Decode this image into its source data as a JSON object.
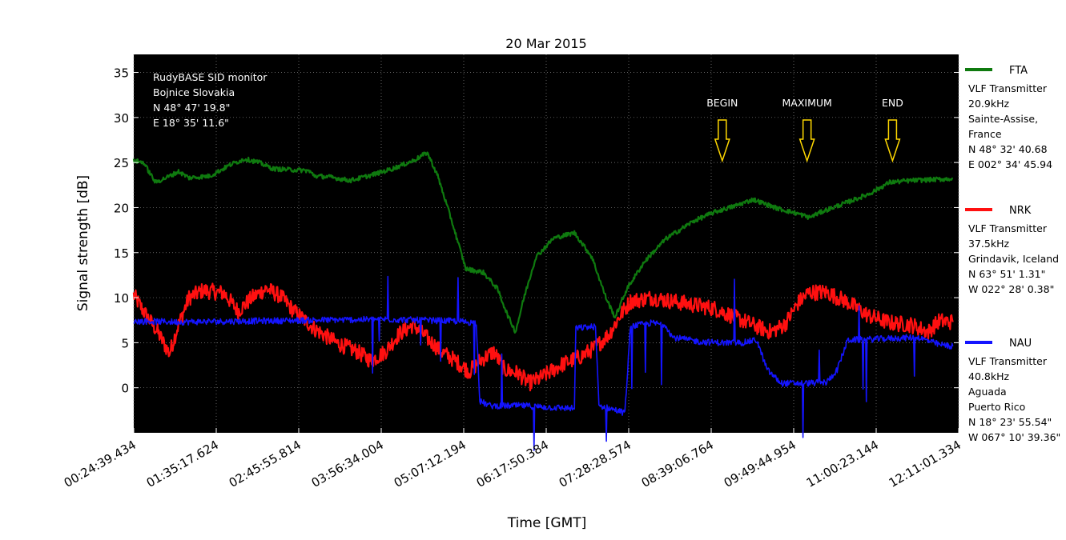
{
  "chart_data": {
    "type": "line",
    "title": "20 Mar 2015",
    "xlabel": "Time [GMT]",
    "ylabel": "Signal strength [dB]",
    "ylim": [
      -5,
      37
    ],
    "yticks": [
      0,
      5,
      10,
      15,
      20,
      25,
      30,
      35
    ],
    "x_tick_labels": [
      "00:24:39.434",
      "01:35:17.624",
      "02:45:55.814",
      "03:56:34.004",
      "05:07:12.194",
      "06:17:50.384",
      "07:28:28.574",
      "08:39:06.764",
      "09:49:44.954",
      "11:00:23.144",
      "12:11:01.334"
    ],
    "x_unit": "hours GMT (decimal)",
    "xlim": [
      0.411,
      12.184
    ],
    "grid": true,
    "background": "#000000",
    "info_lines": [
      "RudyBASE SID monitor",
      "Bojnice Slovakia",
      "N 48° 47' 19.8\"",
      "E 18° 35' 11.6\""
    ],
    "markers": [
      {
        "label": "BEGIN",
        "x": 8.81
      },
      {
        "label": "MAXIMUM",
        "x": 10.02
      },
      {
        "label": "END",
        "x": 11.24
      }
    ],
    "series": [
      {
        "name": "FTA",
        "color": "#0f7a0f",
        "legend_lines": [
          "VLF Transmitter",
          "20.9kHz",
          "Sainte-Assise,",
          "France",
          "N 48° 32' 40.68",
          "E 002° 34' 45.94"
        ],
        "noise": 0.25,
        "points": [
          [
            0.41,
            25.2
          ],
          [
            0.55,
            25.0
          ],
          [
            0.72,
            22.8
          ],
          [
            0.9,
            23.4
          ],
          [
            1.05,
            24.0
          ],
          [
            1.2,
            23.3
          ],
          [
            1.5,
            23.5
          ],
          [
            1.8,
            24.8
          ],
          [
            2.0,
            25.4
          ],
          [
            2.2,
            25.0
          ],
          [
            2.4,
            24.3
          ],
          [
            2.9,
            24.1
          ],
          [
            3.0,
            23.5
          ],
          [
            3.2,
            23.4
          ],
          [
            3.5,
            23.0
          ],
          [
            3.8,
            23.6
          ],
          [
            4.1,
            24.3
          ],
          [
            4.4,
            25.2
          ],
          [
            4.6,
            26.1
          ],
          [
            4.75,
            23.5
          ],
          [
            4.95,
            18.5
          ],
          [
            5.15,
            13.2
          ],
          [
            5.4,
            12.8
          ],
          [
            5.6,
            11.0
          ],
          [
            5.75,
            8.0
          ],
          [
            5.86,
            6.2
          ],
          [
            5.98,
            10.0
          ],
          [
            6.15,
            14.5
          ],
          [
            6.4,
            16.6
          ],
          [
            6.7,
            17.2
          ],
          [
            6.95,
            14.5
          ],
          [
            7.15,
            10.0
          ],
          [
            7.28,
            7.8
          ],
          [
            7.45,
            11.0
          ],
          [
            7.7,
            14.0
          ],
          [
            8.0,
            16.5
          ],
          [
            8.4,
            18.5
          ],
          [
            8.7,
            19.5
          ],
          [
            9.0,
            20.2
          ],
          [
            9.25,
            20.9
          ],
          [
            9.6,
            19.9
          ],
          [
            9.9,
            19.3
          ],
          [
            10.05,
            18.9
          ],
          [
            10.25,
            19.6
          ],
          [
            10.6,
            20.6
          ],
          [
            10.9,
            21.5
          ],
          [
            11.2,
            22.8
          ],
          [
            11.5,
            23.0
          ],
          [
            11.8,
            23.1
          ],
          [
            12.1,
            23.2
          ]
        ]
      },
      {
        "name": "NRK",
        "color": "#ff1010",
        "legend_lines": [
          "VLF Transmitter",
          "37.5kHz",
          "Grindavik, Iceland",
          "N 63° 51' 1.31\"",
          "W 022° 28' 0.38\""
        ],
        "noise": 0.9,
        "points": [
          [
            0.41,
            10.3
          ],
          [
            0.55,
            8.5
          ],
          [
            0.75,
            6.2
          ],
          [
            0.92,
            3.8
          ],
          [
            1.05,
            7.0
          ],
          [
            1.2,
            10.0
          ],
          [
            1.4,
            10.8
          ],
          [
            1.7,
            10.5
          ],
          [
            1.9,
            8.5
          ],
          [
            2.1,
            10.0
          ],
          [
            2.3,
            11.0
          ],
          [
            2.5,
            10.2
          ],
          [
            2.7,
            8.5
          ],
          [
            2.85,
            7.5
          ],
          [
            3.0,
            6.5
          ],
          [
            3.3,
            5.0
          ],
          [
            3.6,
            4.0
          ],
          [
            3.8,
            3.0
          ],
          [
            4.0,
            4.0
          ],
          [
            4.2,
            6.0
          ],
          [
            4.4,
            7.0
          ],
          [
            4.6,
            5.5
          ],
          [
            4.8,
            4.0
          ],
          [
            5.0,
            3.0
          ],
          [
            5.2,
            1.8
          ],
          [
            5.35,
            3.0
          ],
          [
            5.55,
            4.0
          ],
          [
            5.7,
            2.0
          ],
          [
            5.9,
            1.6
          ],
          [
            6.05,
            0.5
          ],
          [
            6.2,
            1.0
          ],
          [
            6.5,
            2.5
          ],
          [
            6.8,
            3.5
          ],
          [
            7.0,
            4.5
          ],
          [
            7.2,
            6.0
          ],
          [
            7.35,
            8.0
          ],
          [
            7.5,
            9.6
          ],
          [
            7.8,
            10.0
          ],
          [
            8.1,
            9.6
          ],
          [
            8.4,
            9.2
          ],
          [
            8.7,
            8.8
          ],
          [
            9.0,
            7.8
          ],
          [
            9.3,
            6.8
          ],
          [
            9.5,
            6.2
          ],
          [
            9.7,
            7.0
          ],
          [
            9.9,
            9.5
          ],
          [
            10.05,
            10.6
          ],
          [
            10.3,
            10.6
          ],
          [
            10.6,
            9.5
          ],
          [
            10.9,
            8.0
          ],
          [
            11.2,
            7.2
          ],
          [
            11.5,
            7.0
          ],
          [
            11.75,
            6.2
          ],
          [
            11.9,
            7.4
          ],
          [
            12.1,
            7.3
          ]
        ]
      },
      {
        "name": "NAU",
        "color": "#1414ff",
        "legend_lines": [
          "VLF Transmitter",
          "40.8kHz",
          "Aguada",
          "Puerto Rico",
          "N 18° 23' 55.54\"",
          "W 067° 10' 39.36\""
        ],
        "noise": 0.35,
        "points": [
          [
            0.41,
            7.4
          ],
          [
            1.0,
            7.3
          ],
          [
            2.0,
            7.4
          ],
          [
            3.0,
            7.5
          ],
          [
            4.0,
            7.6
          ],
          [
            5.0,
            7.4
          ],
          [
            5.3,
            7.2
          ],
          [
            5.35,
            -1.5
          ],
          [
            5.5,
            -2.0
          ],
          [
            6.0,
            -2.0
          ],
          [
            6.4,
            -2.2
          ],
          [
            6.7,
            -2.3
          ],
          [
            6.72,
            6.6
          ],
          [
            7.0,
            6.8
          ],
          [
            7.05,
            -2.0
          ],
          [
            7.3,
            -2.5
          ],
          [
            7.42,
            -2.8
          ],
          [
            7.5,
            6.8
          ],
          [
            7.8,
            7.2
          ],
          [
            8.0,
            7.0
          ],
          [
            8.1,
            5.6
          ],
          [
            8.5,
            5.1
          ],
          [
            8.8,
            5.0
          ],
          [
            9.1,
            5.0
          ],
          [
            9.3,
            5.3
          ],
          [
            9.45,
            2.0
          ],
          [
            9.65,
            0.5
          ],
          [
            10.0,
            0.5
          ],
          [
            10.3,
            0.6
          ],
          [
            10.45,
            2.0
          ],
          [
            10.6,
            5.3
          ],
          [
            11.0,
            5.4
          ],
          [
            11.3,
            5.5
          ],
          [
            11.6,
            5.6
          ],
          [
            11.9,
            4.8
          ],
          [
            12.1,
            4.6
          ]
        ]
      }
    ]
  }
}
